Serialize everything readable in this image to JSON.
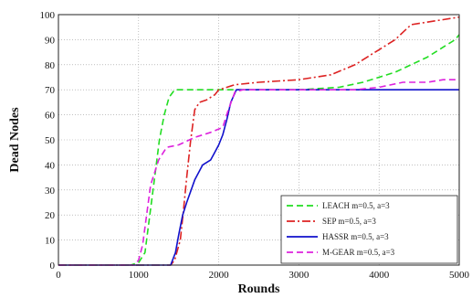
{
  "chart_data": {
    "type": "line",
    "title": "",
    "xlabel": "Rounds",
    "ylabel": "Dead Nodes",
    "xlim": [
      0,
      5000
    ],
    "ylim": [
      0,
      100
    ],
    "xticks": [
      "0",
      "1000",
      "2000",
      "3000",
      "4000",
      "5000"
    ],
    "yticks": [
      "0",
      "10",
      "20",
      "30",
      "40",
      "50",
      "60",
      "70",
      "80",
      "90",
      "100"
    ],
    "grid": true,
    "legend_position": "bottom-right",
    "series": [
      {
        "name": "LEACH m=0.5, a=3",
        "color": "#22dd22",
        "dash": "dashed",
        "points": [
          [
            0,
            0
          ],
          [
            900,
            0
          ],
          [
            1000,
            1
          ],
          [
            1080,
            5
          ],
          [
            1140,
            20
          ],
          [
            1200,
            35
          ],
          [
            1260,
            50
          ],
          [
            1320,
            60
          ],
          [
            1380,
            67
          ],
          [
            1450,
            70
          ],
          [
            1600,
            70
          ],
          [
            2000,
            70
          ],
          [
            2500,
            70
          ],
          [
            3000,
            70
          ],
          [
            3500,
            71
          ],
          [
            3800,
            73
          ],
          [
            4000,
            75
          ],
          [
            4200,
            77
          ],
          [
            4400,
            80
          ],
          [
            4600,
            83
          ],
          [
            4800,
            87
          ],
          [
            4950,
            90
          ],
          [
            5000,
            92
          ]
        ]
      },
      {
        "name": "SEP m=0.5, a=3",
        "color": "#dd2222",
        "dash": "dashdot",
        "points": [
          [
            0,
            0
          ],
          [
            1400,
            0
          ],
          [
            1450,
            2
          ],
          [
            1520,
            10
          ],
          [
            1560,
            22
          ],
          [
            1600,
            35
          ],
          [
            1650,
            50
          ],
          [
            1700,
            62
          ],
          [
            1760,
            65
          ],
          [
            1850,
            66
          ],
          [
            1950,
            68
          ],
          [
            2000,
            70
          ],
          [
            2100,
            71
          ],
          [
            2200,
            72
          ],
          [
            2500,
            73
          ],
          [
            3000,
            74
          ],
          [
            3400,
            76
          ],
          [
            3700,
            80
          ],
          [
            3900,
            84
          ],
          [
            4000,
            86
          ],
          [
            4100,
            88
          ],
          [
            4200,
            90
          ],
          [
            4300,
            93
          ],
          [
            4400,
            96
          ],
          [
            4600,
            97
          ],
          [
            4800,
            98
          ],
          [
            5000,
            99
          ]
        ]
      },
      {
        "name": "HASSR m=0.5, a=3",
        "color": "#1111cc",
        "dash": "solid",
        "points": [
          [
            0,
            0
          ],
          [
            1400,
            0
          ],
          [
            1460,
            5
          ],
          [
            1500,
            12
          ],
          [
            1550,
            20
          ],
          [
            1600,
            25
          ],
          [
            1700,
            34
          ],
          [
            1800,
            40
          ],
          [
            1900,
            42
          ],
          [
            1950,
            45
          ],
          [
            2000,
            48
          ],
          [
            2050,
            52
          ],
          [
            2100,
            58
          ],
          [
            2150,
            65
          ],
          [
            2220,
            70
          ],
          [
            3000,
            70
          ],
          [
            4000,
            70
          ],
          [
            5000,
            70
          ]
        ]
      },
      {
        "name": "M-GEAR m=0.5, a=3",
        "color": "#dd22dd",
        "dash": "dashed",
        "points": [
          [
            0,
            0
          ],
          [
            950,
            0
          ],
          [
            1000,
            2
          ],
          [
            1050,
            8
          ],
          [
            1100,
            20
          ],
          [
            1150,
            32
          ],
          [
            1250,
            42
          ],
          [
            1350,
            47
          ],
          [
            1500,
            48
          ],
          [
            1700,
            51
          ],
          [
            1900,
            53
          ],
          [
            2050,
            55
          ],
          [
            2120,
            62
          ],
          [
            2200,
            69
          ],
          [
            2300,
            70
          ],
          [
            3000,
            70
          ],
          [
            3700,
            70
          ],
          [
            4000,
            71
          ],
          [
            4300,
            73
          ],
          [
            4600,
            73
          ],
          [
            4800,
            74
          ],
          [
            5000,
            74
          ]
        ]
      }
    ]
  }
}
